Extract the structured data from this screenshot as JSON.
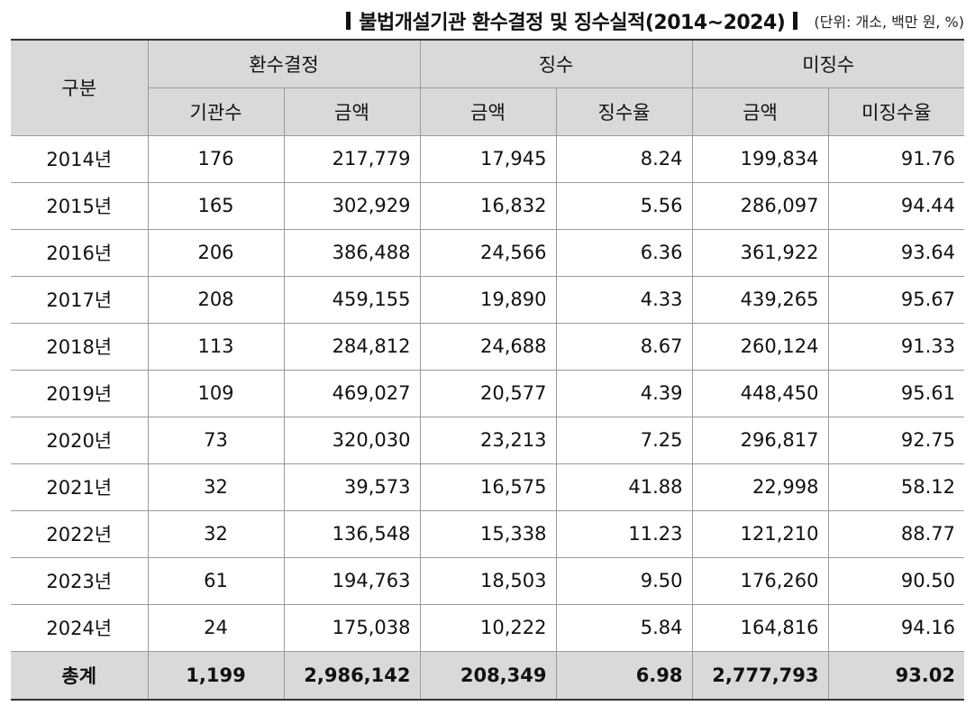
{
  "title": {
    "text": "불법개설기관 환수결정 및 징수실적(2014~2024)",
    "unit": "(단위: 개소, 백만 원, %)"
  },
  "table": {
    "header": {
      "category": "구분",
      "groups": {
        "recovery_decision": "환수결정",
        "collection": "징수",
        "uncollected": "미징수"
      },
      "sub": {
        "institution_count": "기관수",
        "decision_amount": "금액",
        "collected_amount": "금액",
        "collection_rate": "징수율",
        "uncollected_amount": "금액",
        "uncollected_rate": "미징수율"
      }
    },
    "rows": [
      {
        "year": "2014년",
        "institutions": "176",
        "decision_amount": "217,779",
        "collected_amount": "17,945",
        "collection_rate": "8.24",
        "uncollected_amount": "199,834",
        "uncollected_rate": "91.76"
      },
      {
        "year": "2015년",
        "institutions": "165",
        "decision_amount": "302,929",
        "collected_amount": "16,832",
        "collection_rate": "5.56",
        "uncollected_amount": "286,097",
        "uncollected_rate": "94.44"
      },
      {
        "year": "2016년",
        "institutions": "206",
        "decision_amount": "386,488",
        "collected_amount": "24,566",
        "collection_rate": "6.36",
        "uncollected_amount": "361,922",
        "uncollected_rate": "93.64"
      },
      {
        "year": "2017년",
        "institutions": "208",
        "decision_amount": "459,155",
        "collected_amount": "19,890",
        "collection_rate": "4.33",
        "uncollected_amount": "439,265",
        "uncollected_rate": "95.67"
      },
      {
        "year": "2018년",
        "institutions": "113",
        "decision_amount": "284,812",
        "collected_amount": "24,688",
        "collection_rate": "8.67",
        "uncollected_amount": "260,124",
        "uncollected_rate": "91.33"
      },
      {
        "year": "2019년",
        "institutions": "109",
        "decision_amount": "469,027",
        "collected_amount": "20,577",
        "collection_rate": "4.39",
        "uncollected_amount": "448,450",
        "uncollected_rate": "95.61"
      },
      {
        "year": "2020년",
        "institutions": "73",
        "decision_amount": "320,030",
        "collected_amount": "23,213",
        "collection_rate": "7.25",
        "uncollected_amount": "296,817",
        "uncollected_rate": "92.75"
      },
      {
        "year": "2021년",
        "institutions": "32",
        "decision_amount": "39,573",
        "collected_amount": "16,575",
        "collection_rate": "41.88",
        "uncollected_amount": "22,998",
        "uncollected_rate": "58.12"
      },
      {
        "year": "2022년",
        "institutions": "32",
        "decision_amount": "136,548",
        "collected_amount": "15,338",
        "collection_rate": "11.23",
        "uncollected_amount": "121,210",
        "uncollected_rate": "88.77"
      },
      {
        "year": "2023년",
        "institutions": "61",
        "decision_amount": "194,763",
        "collected_amount": "18,503",
        "collection_rate": "9.50",
        "uncollected_amount": "176,260",
        "uncollected_rate": "90.50"
      },
      {
        "year": "2024년",
        "institutions": "24",
        "decision_amount": "175,038",
        "collected_amount": "10,222",
        "collection_rate": "5.84",
        "uncollected_amount": "164,816",
        "uncollected_rate": "94.16"
      }
    ],
    "total": {
      "year": "총계",
      "institutions": "1,199",
      "decision_amount": "2,986,142",
      "collected_amount": "208,349",
      "collection_rate": "6.98",
      "uncollected_amount": "2,777,793",
      "uncollected_rate": "93.02"
    }
  },
  "colors": {
    "header_background": "#d9d9d9",
    "grid_line": "#9a9a9a",
    "text": "#111111"
  }
}
